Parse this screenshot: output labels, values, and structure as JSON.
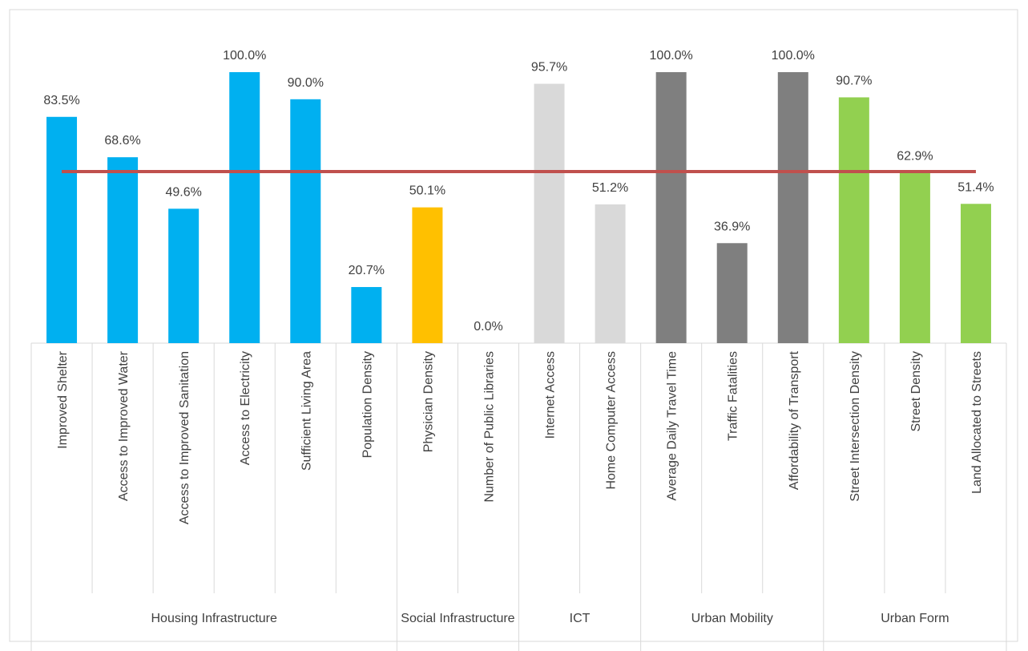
{
  "chart_data": {
    "type": "bar",
    "ylim": [
      0,
      100
    ],
    "groups": [
      {
        "name": "Housing Infrastructure",
        "color": "#00b0f0",
        "categories": [
          "Improved Shelter",
          "Access to Improved Water",
          "Access to Improved Sanitation",
          "Access to Electricity",
          "Sufficient Living Area",
          "Population Density"
        ],
        "values": [
          83.5,
          68.6,
          49.6,
          100,
          90,
          20.7
        ],
        "value_labels": [
          "83.5%",
          "68.6%",
          "49.6%",
          "100.0%",
          "90.0%",
          "20.7%"
        ]
      },
      {
        "name": "Social Infrastructure",
        "color": "#ffc000",
        "categories": [
          "Physician Density",
          "Number of Public Libraries"
        ],
        "values": [
          50.1,
          0
        ],
        "value_labels": [
          "50.1%",
          "0.0%"
        ]
      },
      {
        "name": "ICT",
        "color": "#d9d9d9",
        "categories": [
          "Internet Access",
          "Home Computer Access"
        ],
        "values": [
          95.7,
          51.2
        ],
        "value_labels": [
          "95.7%",
          "51.2%"
        ]
      },
      {
        "name": "Urban Mobility",
        "color": "#7f7f7f",
        "categories": [
          "Average Daily Travel Time",
          "Traffic Fatalities",
          "Affordability of Transport"
        ],
        "values": [
          100,
          36.9,
          100
        ],
        "value_labels": [
          "100.0%",
          "36.9%",
          "100.0%"
        ]
      },
      {
        "name": "Urban Form",
        "color": "#92d050",
        "categories": [
          "Street Intersection Density",
          "Street Density",
          "Land Allocated to Streets"
        ],
        "values": [
          90.7,
          62.9,
          51.4
        ],
        "value_labels": [
          "90.7%",
          "62.9%",
          "51.4%"
        ]
      }
    ],
    "reference_line": {
      "value": 63.3,
      "color": "#c0504d"
    }
  }
}
